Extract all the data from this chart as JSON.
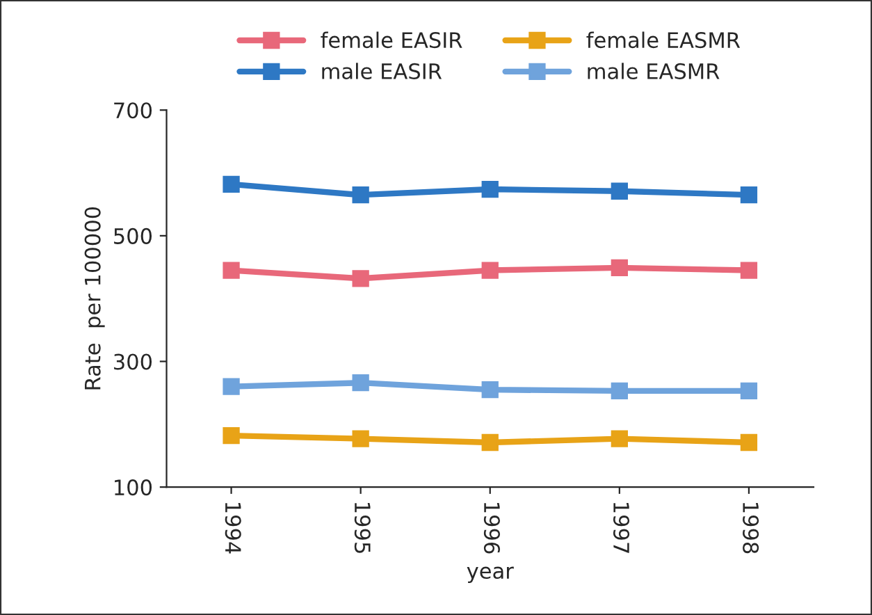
{
  "chart_data": {
    "type": "line",
    "xlabel": "year",
    "ylabel": "Rate  per 100000",
    "categories": [
      "1994",
      "1995",
      "1996",
      "1997",
      "1998"
    ],
    "series": [
      {
        "name": "female EASIR",
        "color": "#e8687a",
        "values": [
          445,
          432,
          445,
          449,
          445
        ]
      },
      {
        "name": "male EASIR",
        "color": "#2e78c4",
        "values": [
          582,
          565,
          574,
          571,
          565
        ]
      },
      {
        "name": "female EASMR",
        "color": "#e8a317",
        "values": [
          182,
          177,
          171,
          177,
          171
        ]
      },
      {
        "name": "male EASMR",
        "color": "#6fa3dc",
        "values": [
          260,
          266,
          255,
          253,
          253
        ]
      }
    ],
    "ylim": [
      100,
      700
    ],
    "yticks": [
      100,
      300,
      500,
      700
    ],
    "marker": "square",
    "line_style": "solid",
    "grid": false,
    "legend": "top"
  }
}
